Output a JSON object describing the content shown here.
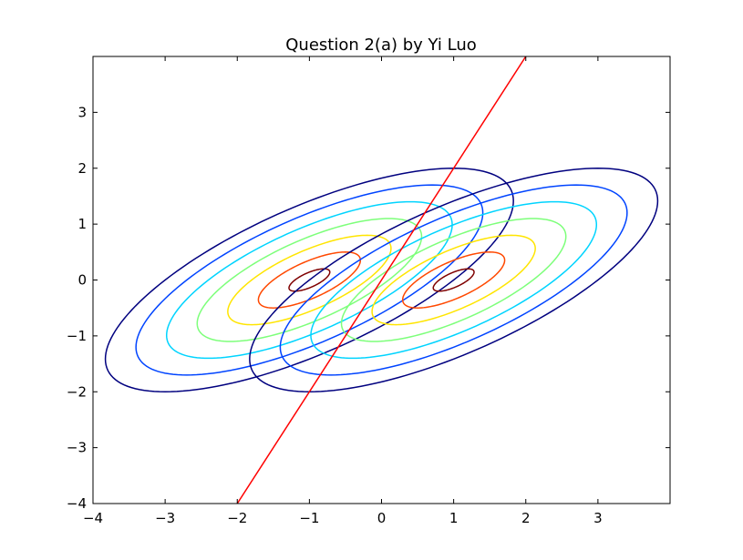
{
  "chart_data": {
    "type": "contour",
    "title": "Question 2(a) by Yi Luo",
    "xlabel": "",
    "ylabel": "",
    "xlim": [
      -4,
      4
    ],
    "ylim": [
      -4,
      4
    ],
    "x_ticks": [
      -4,
      -3,
      -2,
      -1,
      0,
      1,
      2,
      3
    ],
    "y_ticks": [
      -4,
      -3,
      -2,
      -1,
      0,
      1,
      2,
      3
    ],
    "x_tick_labels": [
      "−4",
      "−3",
      "−2",
      "−1",
      "0",
      "1",
      "2",
      "3"
    ],
    "y_tick_labels": [
      "−4",
      "−3",
      "−2",
      "−1",
      "0",
      "1",
      "2",
      "3"
    ],
    "grid": false,
    "covariance": [
      [
        2,
        1
      ],
      [
        1,
        1
      ]
    ],
    "distributions": [
      {
        "mean": [
          -1,
          0
        ]
      },
      {
        "mean": [
          1,
          0
        ]
      }
    ],
    "contour_mahalanobis_radii": [
      2.0,
      1.7,
      1.4,
      1.1,
      0.8,
      0.5,
      0.2
    ],
    "contour_colors": [
      "#00007f",
      "#0044ff",
      "#00d4ff",
      "#7dff7a",
      "#ffe500",
      "#ff4800",
      "#7f0000"
    ],
    "decision_boundary": {
      "x": [
        -2,
        2
      ],
      "y": [
        -4,
        4
      ],
      "color": "#ff0000"
    }
  }
}
